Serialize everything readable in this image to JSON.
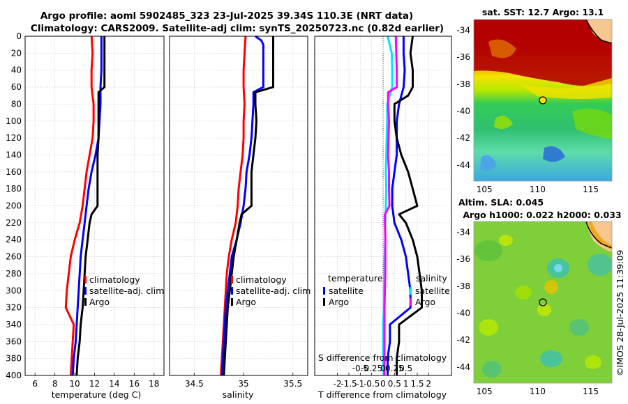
{
  "title_line1": "Argo profile: aoml 5902485_323 23-Jul-2025 39.34S 110.3E (NRT data)",
  "title_line2": "Climatology: CARS2009. Satellite-adj clim: synTS_20250723.nc (0.82d earlier)",
  "depth_ticks": [
    "0",
    "20",
    "40",
    "60",
    "80",
    "100",
    "120",
    "140",
    "160",
    "180",
    "200",
    "220",
    "240",
    "260",
    "280",
    "300",
    "320",
    "340",
    "360",
    "380",
    "400"
  ],
  "colors": {
    "climatology": "#ff0000",
    "satellite": "#0000ff",
    "argo": "#000000",
    "sal_sat": "#00e5ff",
    "sal_diff": "#ff00ff"
  },
  "chart_data": [
    {
      "type": "line",
      "name": "temperature",
      "xlabel": "temperature (deg C)",
      "xlim": [
        5,
        19
      ],
      "ylim": [
        400,
        0
      ],
      "xticks": [
        "6",
        "8",
        "10",
        "12",
        "14",
        "16",
        "18"
      ],
      "legend": [
        "climatology",
        "satellite-adj. clim",
        "Argo"
      ],
      "series": [
        {
          "name": "climatology",
          "color": "#ff0000",
          "depth": [
            0,
            20,
            40,
            60,
            80,
            100,
            120,
            140,
            160,
            180,
            200,
            220,
            240,
            260,
            280,
            300,
            320,
            340,
            360,
            380,
            400
          ],
          "values": [
            11.7,
            11.8,
            11.7,
            11.7,
            11.9,
            11.9,
            11.8,
            11.5,
            11.2,
            11.0,
            10.8,
            10.5,
            10.0,
            9.6,
            9.4,
            9.2,
            9.1,
            9.9,
            9.8,
            9.7,
            9.6
          ]
        },
        {
          "name": "satellite-adj. clim",
          "color": "#0000ff",
          "depth": [
            0,
            20,
            40,
            60,
            80,
            100,
            120,
            140,
            160,
            180,
            200,
            220,
            240,
            260,
            280,
            300,
            320,
            340,
            360,
            380,
            400
          ],
          "values": [
            12.7,
            12.7,
            12.7,
            12.6,
            12.6,
            12.5,
            12.4,
            12.1,
            11.7,
            11.4,
            11.2,
            11.0,
            10.8,
            10.6,
            10.5,
            10.4,
            10.3,
            10.2,
            10.1,
            9.9,
            9.8
          ]
        },
        {
          "name": "Argo",
          "color": "#000000",
          "depth": [
            0,
            20,
            40,
            60,
            66,
            80,
            100,
            120,
            140,
            160,
            180,
            200,
            210,
            220,
            240,
            260,
            280,
            300,
            320,
            340,
            360,
            380,
            400
          ],
          "values": [
            13.0,
            13.0,
            13.0,
            13.0,
            12.4,
            12.4,
            12.4,
            12.4,
            12.3,
            12.3,
            12.3,
            12.3,
            11.7,
            11.5,
            11.3,
            11.1,
            11.0,
            10.9,
            10.8,
            10.6,
            10.5,
            10.3,
            10.2
          ]
        }
      ]
    },
    {
      "type": "line",
      "name": "salinity",
      "xlabel": "salinity",
      "xlim": [
        34.25,
        35.65
      ],
      "ylim": [
        400,
        0
      ],
      "xticks": [
        "34.5",
        "35",
        "35.5"
      ],
      "legend": [
        "climatology",
        "satellite-adj. clim",
        "Argo"
      ],
      "series": [
        {
          "name": "climatology",
          "color": "#ff0000",
          "depth": [
            0,
            20,
            40,
            60,
            80,
            100,
            120,
            140,
            160,
            180,
            200,
            220,
            240,
            260,
            280,
            300,
            320,
            340,
            360,
            380,
            400
          ],
          "values": [
            35.02,
            35.01,
            35.0,
            35.0,
            35.01,
            35.0,
            35.0,
            34.99,
            34.97,
            34.95,
            34.94,
            34.92,
            34.88,
            34.85,
            34.83,
            34.82,
            34.81,
            34.8,
            34.79,
            34.78,
            34.77
          ]
        },
        {
          "name": "satellite-adj. clim",
          "color": "#0000ff",
          "depth": [
            0,
            5,
            10,
            20,
            40,
            60,
            66,
            80,
            100,
            120,
            140,
            160,
            180,
            200,
            220,
            240,
            260,
            280,
            300,
            320,
            340,
            360,
            380,
            400
          ],
          "values": [
            35.12,
            35.18,
            35.2,
            35.2,
            35.2,
            35.2,
            35.1,
            35.1,
            35.09,
            35.08,
            35.06,
            35.03,
            35.02,
            35.0,
            34.97,
            34.93,
            34.88,
            34.86,
            34.84,
            34.82,
            34.81,
            34.8,
            34.79,
            34.78
          ]
        },
        {
          "name": "Argo",
          "color": "#000000",
          "depth": [
            0,
            20,
            40,
            60,
            66,
            80,
            100,
            120,
            140,
            160,
            180,
            200,
            210,
            220,
            240,
            260,
            280,
            300,
            320,
            340,
            360,
            380,
            400
          ],
          "values": [
            35.3,
            35.3,
            35.3,
            35.3,
            35.12,
            35.12,
            35.13,
            35.12,
            35.1,
            35.08,
            35.08,
            35.08,
            34.98,
            34.96,
            34.93,
            34.9,
            34.88,
            34.86,
            34.84,
            34.83,
            34.82,
            34.81,
            34.8
          ]
        }
      ]
    },
    {
      "type": "line",
      "name": "difference",
      "xlabel": "T difference from climatology",
      "top_axis_label": "S difference from climatology",
      "xlim": [
        -3,
        3
      ],
      "ylim": [
        400,
        0
      ],
      "xticks": [
        "-2",
        "-1.5",
        "-1",
        "-0.5",
        "0",
        "0.5",
        "1",
        "1.5",
        "2"
      ],
      "top_ticks": [
        "-0.5",
        "-0.25",
        "0",
        "0.25",
        "0.5"
      ],
      "legend_t_title": "temperature",
      "legend_s_title": "salinity",
      "legend_t": [
        "satellite",
        "Argo"
      ],
      "legend_s": [
        "satellite",
        "Argo"
      ],
      "series": [
        {
          "name": "T satellite",
          "color": "#0000ff",
          "depth": [
            0,
            20,
            40,
            60,
            80,
            100,
            120,
            140,
            160,
            180,
            200,
            220,
            240,
            260,
            280,
            300,
            320,
            340,
            360,
            380,
            400
          ],
          "values": [
            0.9,
            0.9,
            0.95,
            0.9,
            0.7,
            0.6,
            0.6,
            0.6,
            0.5,
            0.4,
            0.4,
            0.5,
            0.8,
            1.0,
            1.1,
            1.2,
            1.2,
            0.3,
            0.3,
            0.2,
            0.2
          ]
        },
        {
          "name": "T Argo",
          "color": "#000000",
          "depth": [
            0,
            20,
            40,
            60,
            70,
            80,
            100,
            120,
            140,
            160,
            180,
            200,
            210,
            220,
            240,
            260,
            280,
            300,
            320,
            340,
            360,
            380,
            400
          ],
          "values": [
            1.3,
            1.2,
            1.3,
            1.3,
            1.1,
            0.5,
            0.5,
            0.6,
            0.8,
            1.1,
            1.3,
            1.5,
            0.7,
            1.0,
            1.3,
            1.5,
            1.6,
            1.7,
            1.7,
            0.7,
            0.7,
            0.6,
            0.6
          ]
        },
        {
          "name": "S satellite",
          "color": "#00e5ff",
          "depth": [
            0,
            20,
            40,
            60,
            80,
            100,
            120,
            140,
            160,
            180,
            200,
            220,
            240,
            260,
            280,
            300,
            320,
            340,
            360,
            380,
            400
          ],
          "values": [
            0.1,
            0.19,
            0.2,
            0.2,
            0.09,
            0.09,
            0.08,
            0.07,
            0.06,
            0.07,
            0.06,
            0.05,
            0.05,
            0.03,
            0.03,
            0.02,
            0.02,
            0.0,
            0.0,
            0.0,
            0.01
          ]
        },
        {
          "name": "S Argo",
          "color": "#ff00ff",
          "depth": [
            0,
            20,
            40,
            60,
            66,
            80,
            100,
            120,
            140,
            160,
            180,
            200,
            210,
            220,
            240,
            260,
            280,
            300,
            320,
            340,
            360,
            380,
            400
          ],
          "values": [
            0.28,
            0.29,
            0.3,
            0.3,
            0.11,
            0.11,
            0.13,
            0.12,
            0.11,
            0.13,
            0.13,
            0.14,
            0.04,
            0.04,
            0.05,
            0.05,
            0.05,
            0.04,
            0.03,
            0.03,
            0.03,
            0.03,
            0.03
          ]
        }
      ]
    },
    {
      "type": "heatmap",
      "name": "sst-map",
      "title": "sat. SST: 12.7 Argo: 13.1",
      "xticks": [
        "105",
        "110",
        "115"
      ],
      "yticks": [
        "-34",
        "-36",
        "-38",
        "-40",
        "-42",
        "-44"
      ],
      "xlim": [
        104,
        117
      ],
      "ylim": [
        -45.2,
        -33.2
      ],
      "marker": [
        110.3,
        -39.34
      ]
    },
    {
      "type": "heatmap",
      "name": "sla-map",
      "title_line1": "Altim. SLA: 0.045",
      "title_line2": "Argo h1000: 0.022 h2000: 0.033",
      "xticks": [
        "105",
        "110",
        "115"
      ],
      "yticks": [
        "-34",
        "-36",
        "-38",
        "-40",
        "-42",
        "-44"
      ],
      "xlim": [
        104,
        117
      ],
      "ylim": [
        -45.2,
        -33.2
      ],
      "marker": [
        110.3,
        -39.34
      ]
    }
  ],
  "timestamp": "©IMOS 28-Jul-2025 11:39:09"
}
